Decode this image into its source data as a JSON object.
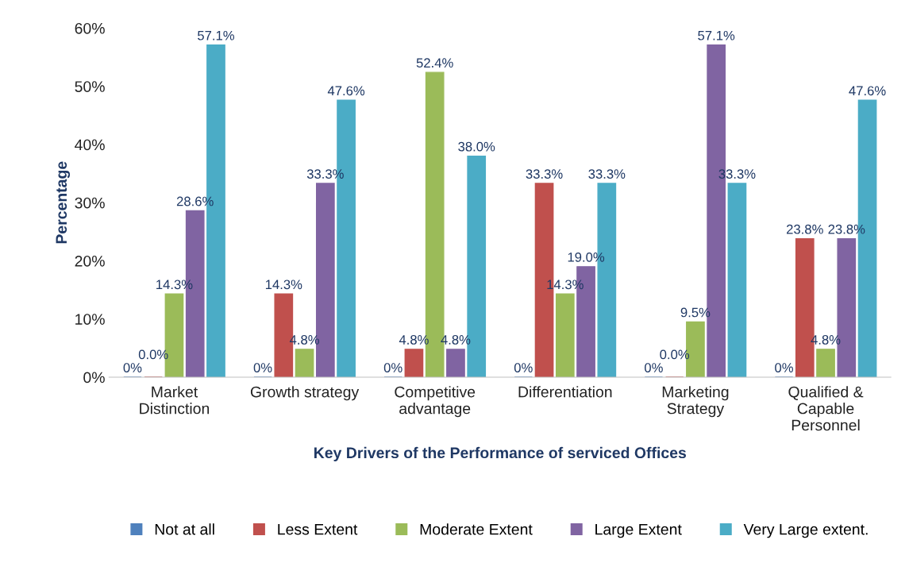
{
  "chart_data": {
    "type": "bar",
    "xlabel": "Key Drivers of the Performance of serviced Offices",
    "ylabel": "Percentage",
    "categories": [
      "Market\nDistinction",
      "Growth strategy",
      "Competitive\nadvantage",
      "Differentiation",
      "Marketing\nStrategy",
      "Qualified &\nCapable\nPersonnel"
    ],
    "series": [
      {
        "name": "Not at all",
        "color": "#4f81bd",
        "values": [
          0,
          0,
          0,
          0,
          0,
          0
        ],
        "value_labels": [
          "0%",
          "0%",
          "0%",
          "0%",
          "0%",
          "0%"
        ]
      },
      {
        "name": "Less Extent",
        "color": "#c0504d",
        "values": [
          0,
          14.3,
          4.8,
          33.3,
          0,
          23.8
        ],
        "value_labels": [
          "0.0%",
          "14.3%",
          "4.8%",
          "33.3%",
          "0.0%",
          "23.8%"
        ]
      },
      {
        "name": "Moderate Extent",
        "color": "#9bbb59",
        "values": [
          14.3,
          4.8,
          52.4,
          14.3,
          9.5,
          4.8
        ],
        "value_labels": [
          "14.3%",
          "4.8%",
          "52.4%",
          "14.3%",
          "9.5%",
          "4.8%"
        ]
      },
      {
        "name": "Large Extent",
        "color": "#8064a2",
        "values": [
          28.6,
          33.3,
          4.8,
          19.0,
          57.1,
          23.8
        ],
        "value_labels": [
          "28.6%",
          "33.3%",
          "4.8%",
          "19.0%",
          "57.1%",
          "23.8%"
        ]
      },
      {
        "name": "Very Large extent.",
        "color": "#4bacc6",
        "values": [
          57.1,
          47.6,
          38.0,
          33.3,
          33.3,
          47.6
        ],
        "value_labels": [
          "57.1%",
          "47.6%",
          "38.0%",
          "33.3%",
          "33.3%",
          "47.6%"
        ]
      }
    ],
    "ylim": [
      0,
      60
    ],
    "yticks": [
      {
        "value": 0,
        "label": "0%"
      },
      {
        "value": 10,
        "label": "10%"
      },
      {
        "value": 20,
        "label": "20%"
      },
      {
        "value": 30,
        "label": "30%"
      },
      {
        "value": 40,
        "label": "40%"
      },
      {
        "value": 50,
        "label": "50%"
      },
      {
        "value": 60,
        "label": "60%"
      }
    ],
    "grid": false,
    "legend": "bottom"
  }
}
